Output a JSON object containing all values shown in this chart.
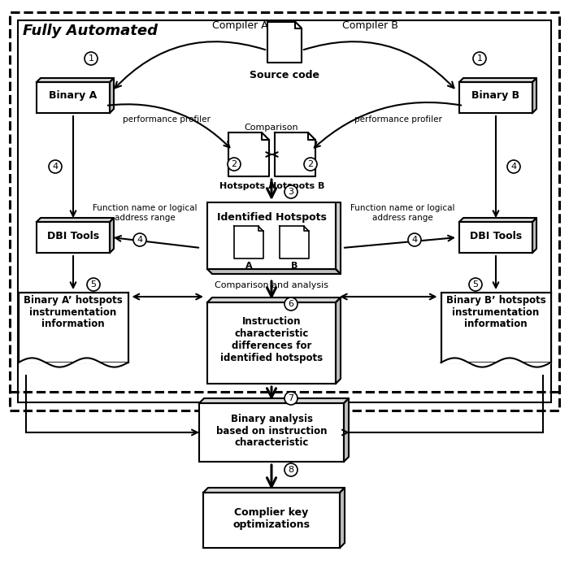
{
  "title": "Fully Automated",
  "bg_color": "#ffffff",
  "source_code_label": "Source code",
  "compiler_a": "Compiler A",
  "compiler_b": "Compiler B",
  "binary_a_label": "Binary A",
  "binary_b_label": "Binary B",
  "hotspots_a_label": "Hotspots A",
  "hotspots_b_label": "Hotspots B",
  "comparison_label": "Comparison",
  "perf_profiler_label": "performance profiler",
  "identified_hotspots_label": "Identified Hotspots",
  "dbi_tools_label": "DBI Tools",
  "binary_a_hot_label": "Binary A’ hotspots\ninstrumentation\ninformation",
  "binary_b_hot_label": "Binary B’ hotspots\ninstrumentation\ninformation",
  "func_name_label": "Function name or logical\naddress range",
  "comparison_analysis_label": "Comparison and analysis",
  "instruction_diff_label": "Instruction\ncharacteristic\ndifferences for\nidentified hotspots",
  "binary_analysis_label": "Binary analysis\nbased on instruction\ncharacteristic",
  "key_opt_label": "Complier key\noptimizations"
}
